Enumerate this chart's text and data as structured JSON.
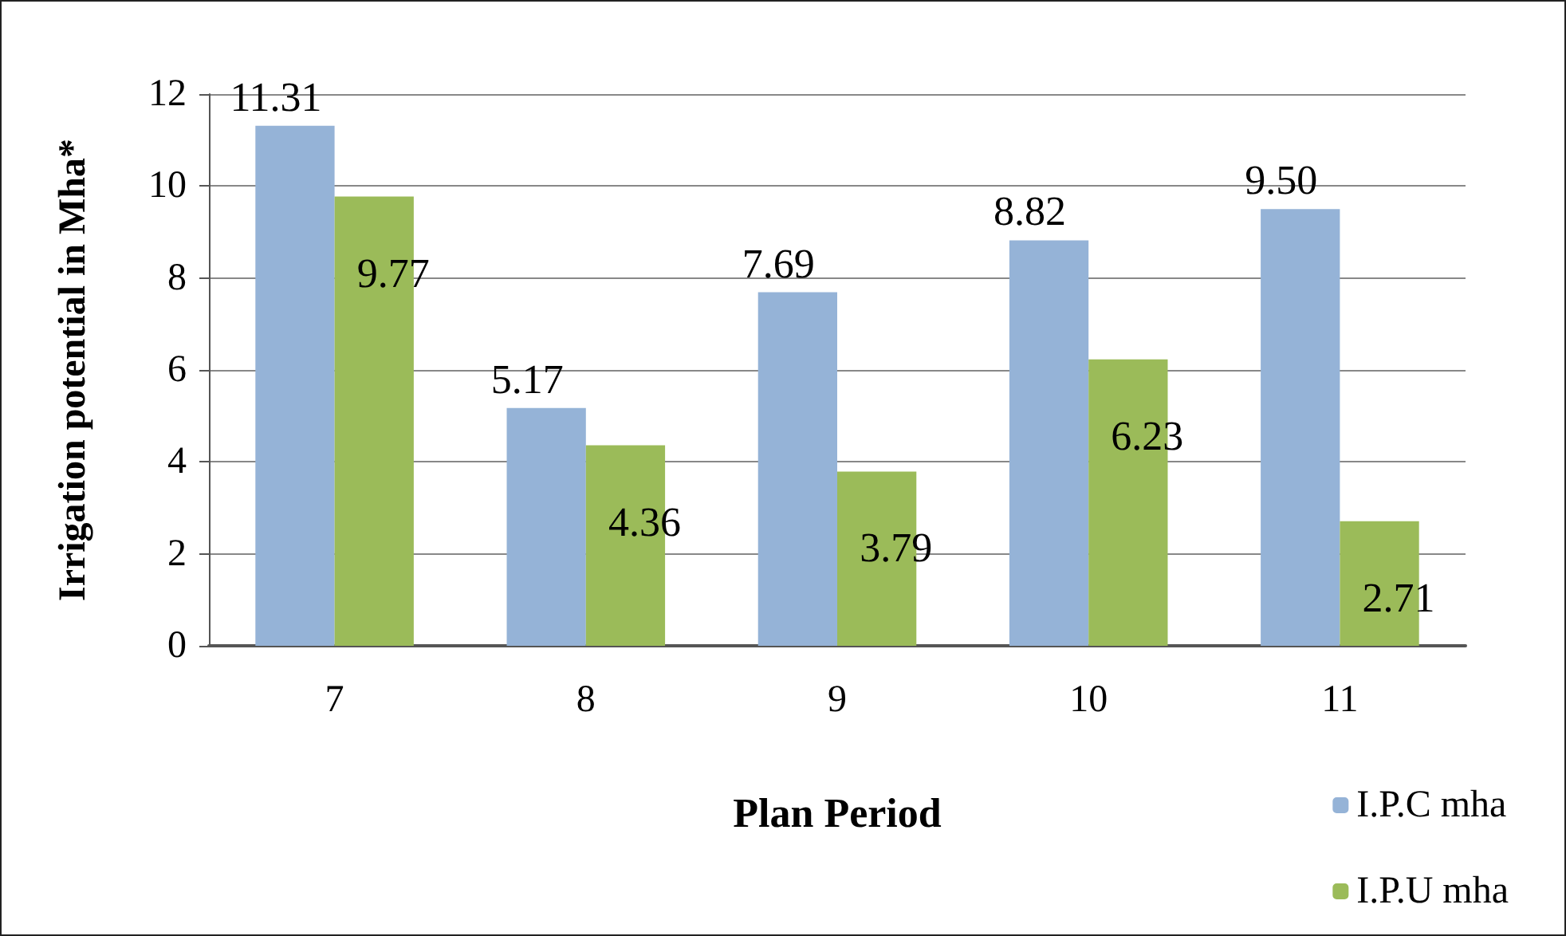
{
  "chart_data": {
    "type": "bar",
    "xlabel": "Plan Period",
    "ylabel": "Irrigation potential in Mha*",
    "categories": [
      "7",
      "8",
      "9",
      "10",
      "11"
    ],
    "series": [
      {
        "name": "I.P.C mha",
        "color": "#95b3d7",
        "values": [
          11.31,
          5.17,
          7.69,
          8.82,
          9.5
        ],
        "value_labels": [
          "11.31",
          "5.17",
          "7.69",
          "8.82",
          "9.50"
        ]
      },
      {
        "name": "I.P.U mha",
        "color": "#9bbb59",
        "values": [
          9.77,
          4.36,
          3.79,
          6.23,
          2.71
        ],
        "value_labels": [
          "9.77",
          "4.36",
          "3.79",
          "6.23",
          "2.71"
        ]
      }
    ],
    "ylim": [
      0,
      12
    ],
    "yticks": [
      0,
      2,
      4,
      6,
      8,
      10,
      12
    ],
    "grid": "y",
    "legend": "bottom right"
  }
}
